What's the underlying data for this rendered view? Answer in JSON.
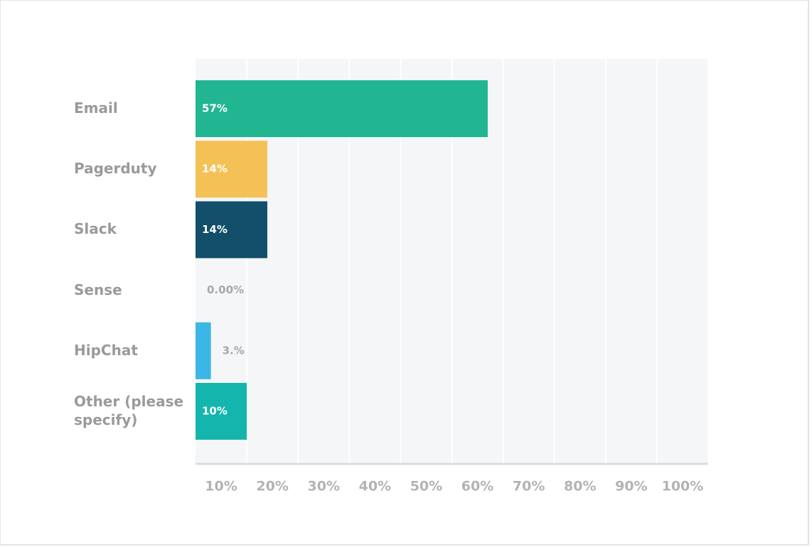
{
  "chart_data": {
    "type": "bar",
    "orientation": "horizontal",
    "categories": [
      "Email",
      "Pagerduty",
      "Slack",
      "Sense",
      "HipChat",
      "Other (please specify)"
    ],
    "values": [
      57,
      14,
      14,
      0,
      3,
      10
    ],
    "value_labels": [
      "57%",
      "14%",
      "14%",
      "0.00%",
      "3.%",
      "10%"
    ],
    "colors": [
      "#22b592",
      "#f4c157",
      "#114f6a",
      "#cccccc",
      "#3cb6e6",
      "#14b5ad"
    ],
    "xlim": [
      0,
      100
    ],
    "xticks": [
      {
        "value": 10,
        "label": "10%"
      },
      {
        "value": 20,
        "label": "20%"
      },
      {
        "value": 30,
        "label": "30%"
      },
      {
        "value": 40,
        "label": "40%"
      },
      {
        "value": 50,
        "label": "50%"
      },
      {
        "value": 60,
        "label": "60%"
      },
      {
        "value": 70,
        "label": "70%"
      },
      {
        "value": 80,
        "label": "80%"
      },
      {
        "value": 90,
        "label": "90%"
      },
      {
        "value": 100,
        "label": "100%"
      }
    ],
    "grid": true
  }
}
